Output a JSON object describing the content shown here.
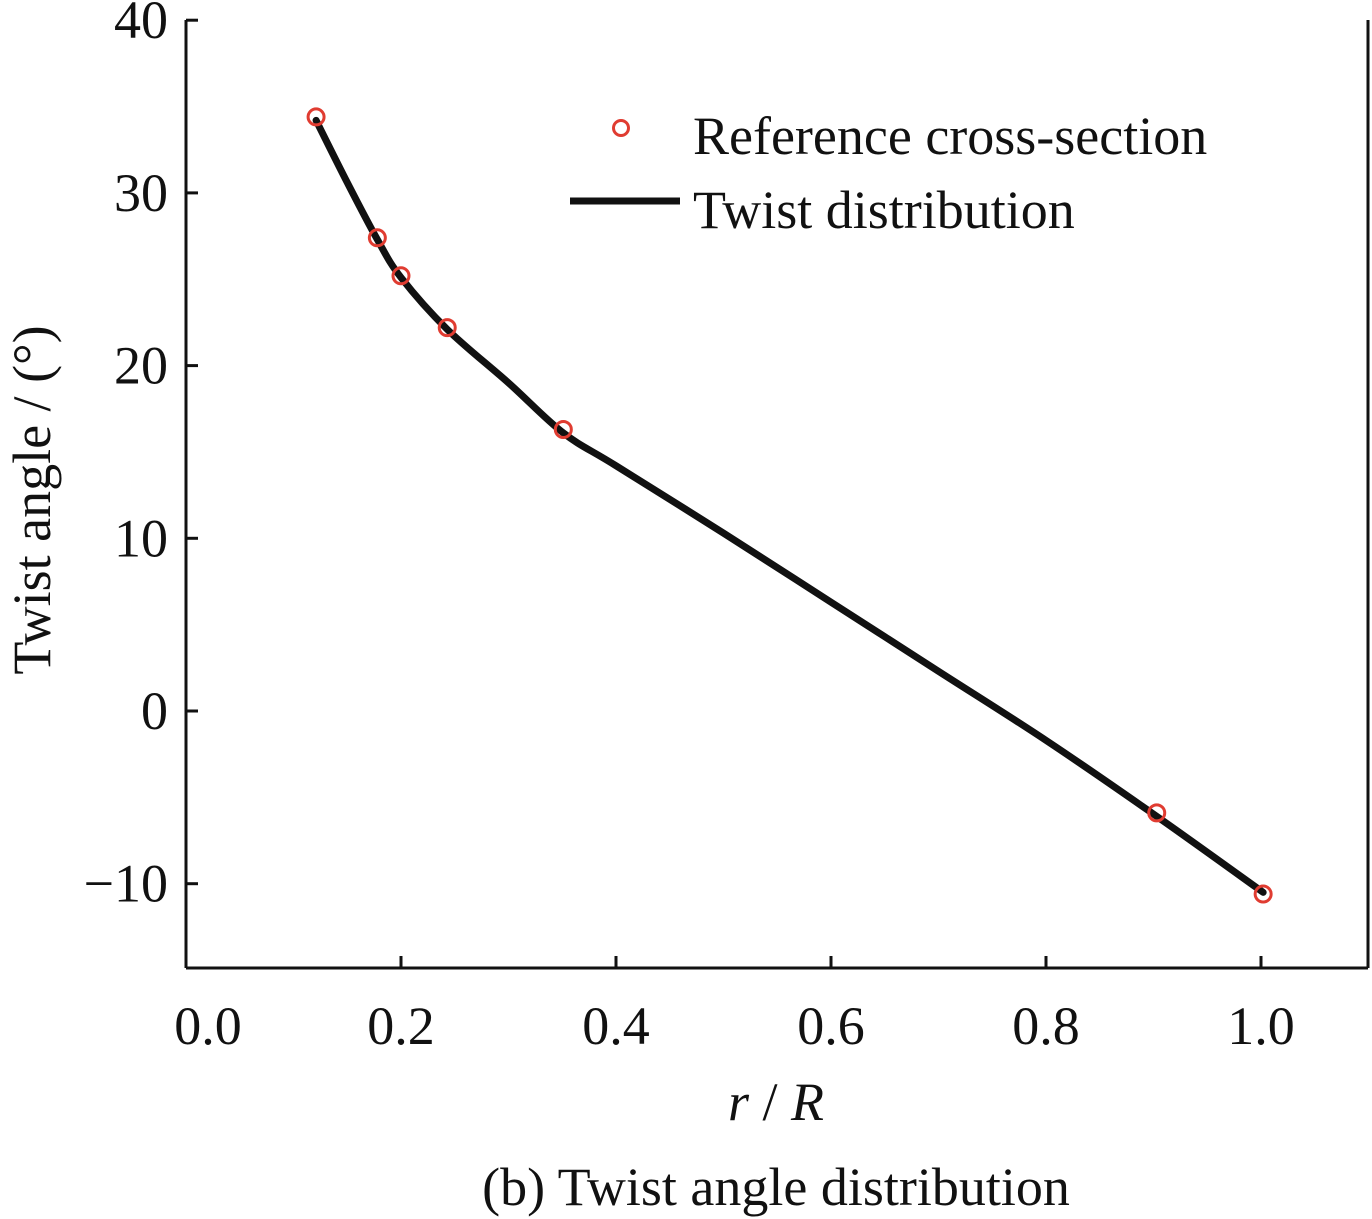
{
  "chart_data": {
    "type": "line",
    "title": "",
    "caption": "(b) Twist angle distribution",
    "xlabel_italic": [
      "r",
      "R"
    ],
    "xlabel_sep": " / ",
    "ylabel": "Twist angle / (°)",
    "xlim": [
      0.0,
      1.1
    ],
    "ylim": [
      -15,
      40
    ],
    "xticks": [
      "0.0",
      "0.2",
      "0.4",
      "0.6",
      "0.8",
      "1.0"
    ],
    "xtick_values": [
      0.0,
      0.2,
      0.4,
      0.6,
      0.8,
      1.0
    ],
    "yticks": [
      "40",
      "30",
      "20",
      "10",
      "0",
      "−10"
    ],
    "ytick_values": [
      40,
      30,
      20,
      10,
      0,
      -10
    ],
    "grid": false,
    "legend_position": "top-right",
    "series": [
      {
        "name": "Reference cross-section",
        "kind": "scatter",
        "marker": "open-circle",
        "color": "#e03c31",
        "x": [
          0.121,
          0.178,
          0.2,
          0.243,
          0.351,
          0.903,
          1.002
        ],
        "y": [
          34.4,
          27.4,
          25.2,
          22.2,
          16.3,
          -5.9,
          -10.6
        ]
      },
      {
        "name": "Twist distribution",
        "kind": "line",
        "color": "#111111",
        "x": [
          0.121,
          0.15,
          0.178,
          0.2,
          0.243,
          0.3,
          0.351,
          0.4,
          0.5,
          0.6,
          0.7,
          0.8,
          0.903,
          1.002
        ],
        "y": [
          34.2,
          30.6,
          27.3,
          25.1,
          22.1,
          19.0,
          16.1,
          14.2,
          10.3,
          6.3,
          2.3,
          -1.7,
          -6.1,
          -10.5
        ]
      }
    ]
  }
}
